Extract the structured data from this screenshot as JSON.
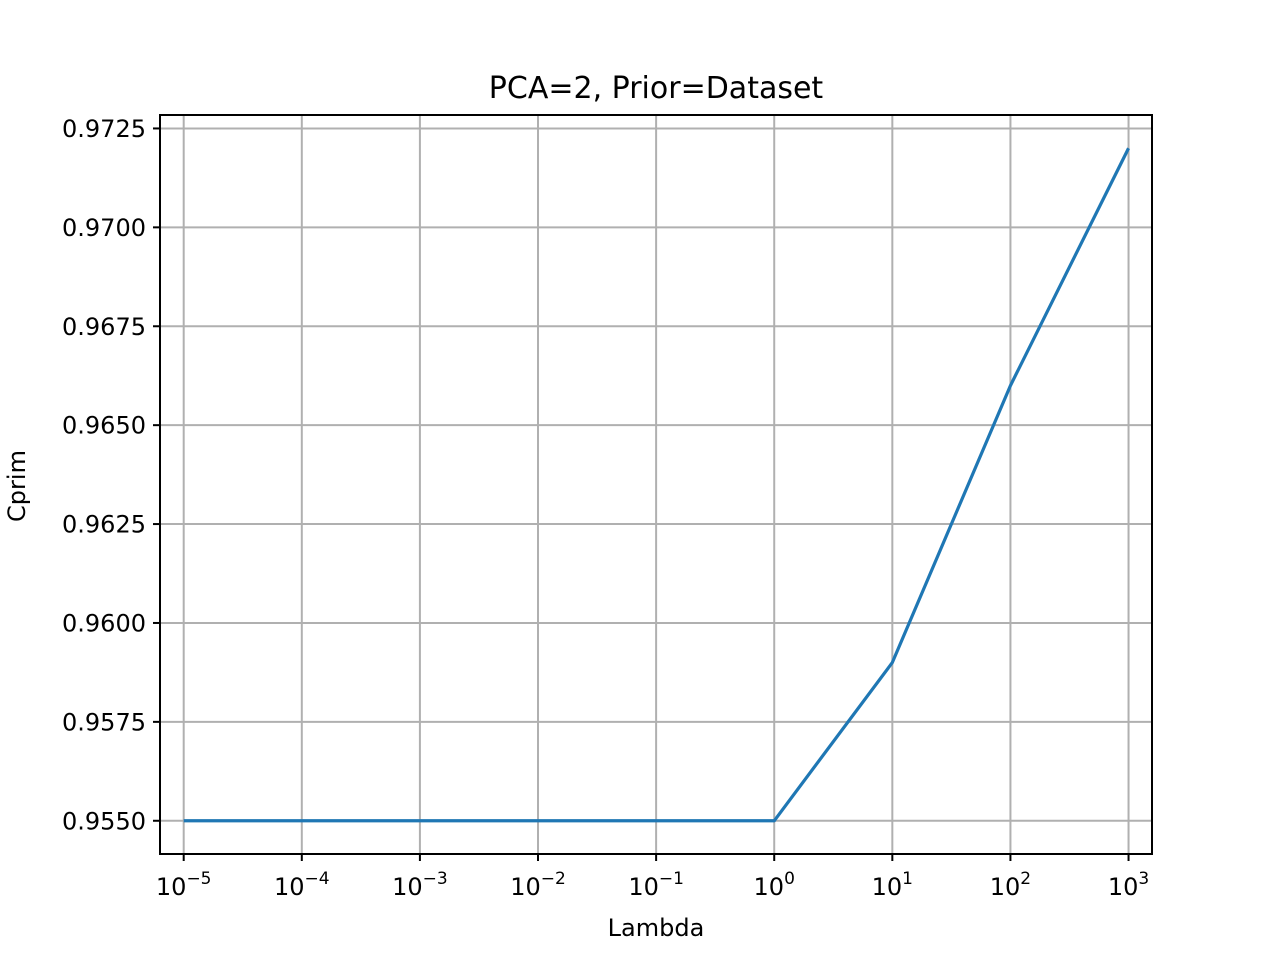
{
  "chart_data": {
    "type": "line",
    "title": "PCA=2, Prior=Dataset",
    "xlabel": "Lambda",
    "ylabel": "Cprim",
    "xscale": "log",
    "grid": true,
    "x": [
      1e-05,
      0.0001,
      0.001,
      0.01,
      0.1,
      1,
      10,
      100,
      1000
    ],
    "series": [
      {
        "color": "#1f77b4",
        "values": [
          0.955,
          0.955,
          0.955,
          0.955,
          0.955,
          0.955,
          0.959,
          0.966,
          0.972
        ]
      }
    ],
    "xlim": [
      6.3e-06,
      1580
    ],
    "ylim": [
      0.95416,
      0.97284
    ],
    "xticks": [
      {
        "value": 1e-05,
        "base": "10",
        "exp": "−5"
      },
      {
        "value": 0.0001,
        "base": "10",
        "exp": "−4"
      },
      {
        "value": 0.001,
        "base": "10",
        "exp": "−3"
      },
      {
        "value": 0.01,
        "base": "10",
        "exp": "−2"
      },
      {
        "value": 0.1,
        "base": "10",
        "exp": "−1"
      },
      {
        "value": 1,
        "base": "10",
        "exp": "0"
      },
      {
        "value": 10,
        "base": "10",
        "exp": "1"
      },
      {
        "value": 100,
        "base": "10",
        "exp": "2"
      },
      {
        "value": 1000,
        "base": "10",
        "exp": "3"
      }
    ],
    "yticks": [
      {
        "value": 0.955,
        "label": "0.9550"
      },
      {
        "value": 0.9575,
        "label": "0.9575"
      },
      {
        "value": 0.96,
        "label": "0.9600"
      },
      {
        "value": 0.9625,
        "label": "0.9625"
      },
      {
        "value": 0.965,
        "label": "0.9650"
      },
      {
        "value": 0.9675,
        "label": "0.9675"
      },
      {
        "value": 0.97,
        "label": "0.9700"
      },
      {
        "value": 0.9725,
        "label": "0.9725"
      }
    ]
  }
}
